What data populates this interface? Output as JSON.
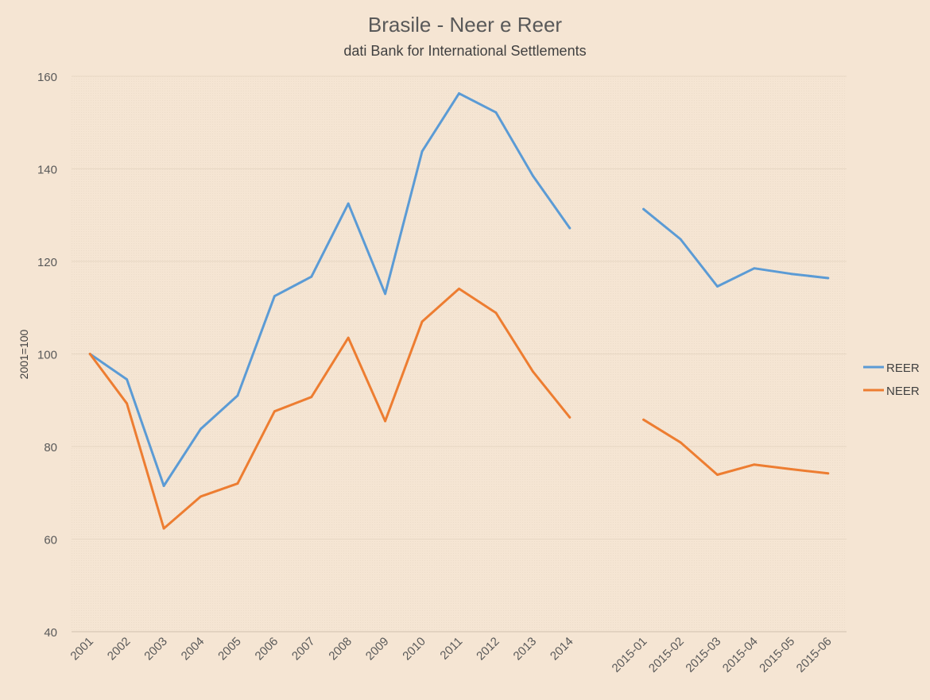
{
  "chart_data": {
    "type": "line",
    "title": "Brasile - Neer e Reer",
    "subtitle": "dati Bank for International Settlements",
    "ylabel": "2001=100",
    "xlabel": "",
    "ylim": [
      40,
      160
    ],
    "yticks": [
      40,
      60,
      80,
      100,
      120,
      140,
      160
    ],
    "grid": true,
    "legend_position": "right",
    "categories": [
      "2001",
      "2002",
      "2003",
      "2004",
      "2005",
      "2006",
      "2007",
      "2008",
      "2009",
      "2010",
      "2011",
      "2012",
      "2013",
      "2014",
      "",
      "2015-01",
      "2015-02",
      "2015-03",
      "2015-04",
      "2015-05",
      "2015-06"
    ],
    "series": [
      {
        "name": "REER",
        "color": "#5b9bd5",
        "values": [
          100,
          94.5,
          71.5,
          83.8,
          91,
          112.5,
          116.7,
          132.5,
          113,
          143.8,
          156.3,
          152.2,
          138.5,
          127.2,
          null,
          131.3,
          124.8,
          114.6,
          118.5,
          117.3,
          116.4
        ]
      },
      {
        "name": "NEER",
        "color": "#ed7d31",
        "values": [
          100,
          89.3,
          62.3,
          69.2,
          72,
          87.6,
          90.7,
          103.5,
          85.5,
          107,
          114.1,
          108.9,
          96.2,
          86.3,
          null,
          85.8,
          80.9,
          73.9,
          76.1,
          75.1,
          74.2
        ]
      }
    ]
  }
}
